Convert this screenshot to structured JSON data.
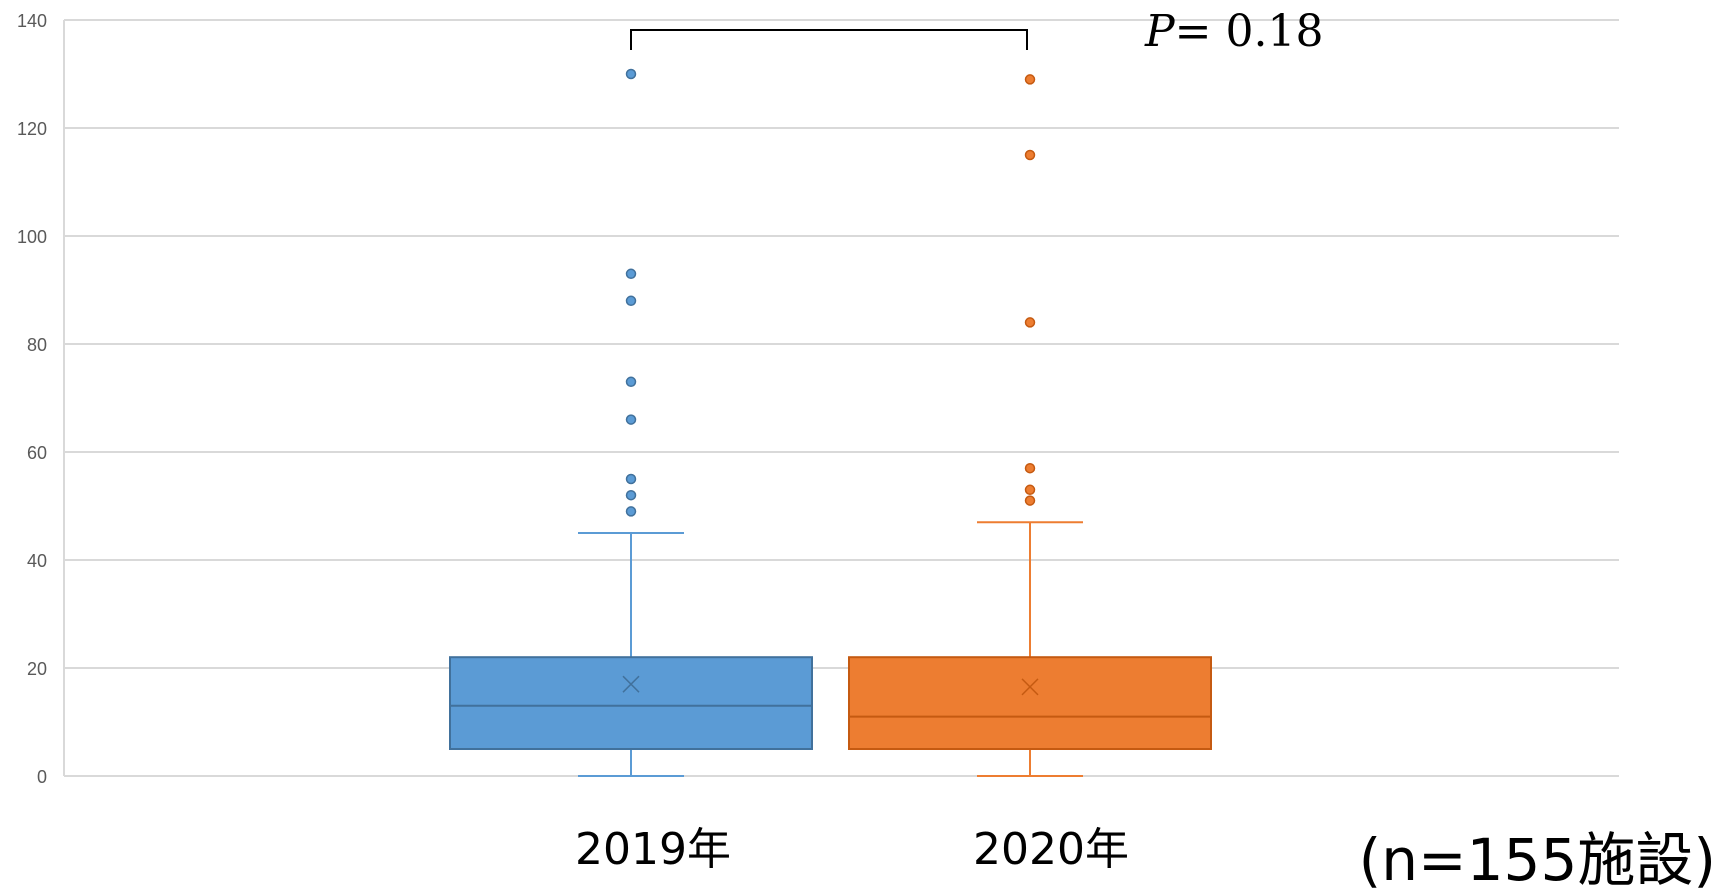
{
  "chart_data": {
    "type": "boxplot",
    "categories": [
      "2019年",
      "2020年"
    ],
    "ylim": [
      0,
      140
    ],
    "yticks": [
      0,
      20,
      40,
      60,
      80,
      100,
      120,
      140
    ],
    "grid": true,
    "series": [
      {
        "color": "#5B9BD5",
        "edge_color": "#41719C",
        "min": 0,
        "q1": 5,
        "median": 13,
        "q3": 22,
        "max": 45,
        "mean": 17,
        "outliers": [
          49,
          52,
          55,
          66,
          73,
          88,
          93,
          130
        ]
      },
      {
        "color": "#ED7D31",
        "edge_color": "#C55A11",
        "min": 0,
        "q1": 5,
        "median": 11,
        "q3": 22,
        "max": 47,
        "mean": 16.5,
        "outliers": [
          51,
          53,
          57,
          84,
          115,
          129
        ]
      }
    ],
    "annotation": {
      "p_symbol": "P",
      "p_rest": "= 0.18"
    },
    "sample_note": "(n=155施設)"
  }
}
